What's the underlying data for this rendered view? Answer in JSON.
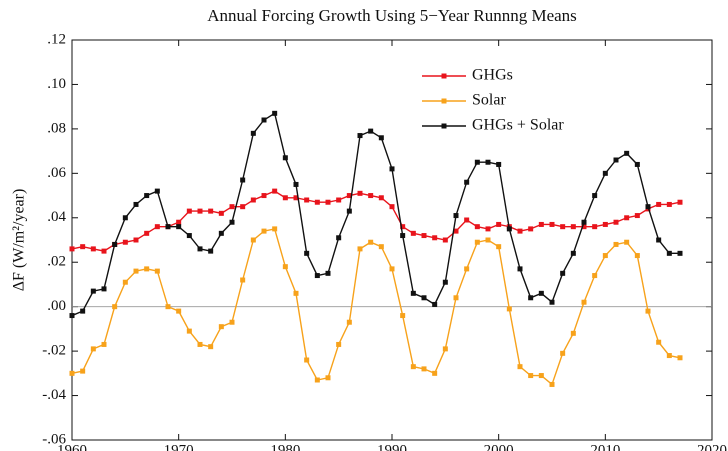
{
  "chart_data": {
    "type": "line",
    "title": "Annual Forcing Growth Using 5−Year Runnng Means",
    "y_label": "ΔF (W/m²/year)",
    "x": [
      1960,
      1961,
      1962,
      1963,
      1964,
      1965,
      1966,
      1967,
      1968,
      1969,
      1970,
      1971,
      1972,
      1973,
      1974,
      1975,
      1976,
      1977,
      1978,
      1979,
      1980,
      1981,
      1982,
      1983,
      1984,
      1985,
      1986,
      1987,
      1988,
      1989,
      1990,
      1991,
      1992,
      1993,
      1994,
      1995,
      1996,
      1997,
      1998,
      1999,
      2000,
      2001,
      2002,
      2003,
      2004,
      2005,
      2006,
      2007,
      2008,
      2009,
      2010,
      2011,
      2012,
      2013,
      2014,
      2015,
      2016,
      2017
    ],
    "series": [
      {
        "name": "GHGs",
        "color": "#e8141c",
        "values": [
          0.026,
          0.027,
          0.026,
          0.025,
          0.028,
          0.029,
          0.03,
          0.033,
          0.036,
          0.036,
          0.038,
          0.043,
          0.043,
          0.043,
          0.042,
          0.045,
          0.045,
          0.048,
          0.05,
          0.052,
          0.049,
          0.049,
          0.048,
          0.047,
          0.047,
          0.048,
          0.05,
          0.051,
          0.05,
          0.049,
          0.045,
          0.036,
          0.033,
          0.032,
          0.031,
          0.03,
          0.034,
          0.039,
          0.036,
          0.035,
          0.037,
          0.036,
          0.034,
          0.035,
          0.037,
          0.037,
          0.036,
          0.036,
          0.036,
          0.036,
          0.037,
          0.038,
          0.04,
          0.041,
          0.044,
          0.046,
          0.046,
          0.047
        ]
      },
      {
        "name": "Solar",
        "color": "#f7a21b",
        "values": [
          -0.03,
          -0.029,
          -0.019,
          -0.017,
          0.0,
          0.011,
          0.016,
          0.017,
          0.016,
          0.0,
          -0.002,
          -0.011,
          -0.017,
          -0.018,
          -0.009,
          -0.007,
          0.012,
          0.03,
          0.034,
          0.035,
          0.018,
          0.006,
          -0.024,
          -0.033,
          -0.032,
          -0.017,
          -0.007,
          0.026,
          0.029,
          0.027,
          0.017,
          -0.004,
          -0.027,
          -0.028,
          -0.03,
          -0.019,
          0.004,
          0.017,
          0.029,
          0.03,
          0.027,
          -0.001,
          -0.027,
          -0.031,
          -0.031,
          -0.035,
          -0.021,
          -0.012,
          0.002,
          0.014,
          0.023,
          0.028,
          0.029,
          0.023,
          -0.002,
          -0.016,
          -0.022,
          -0.023
        ]
      },
      {
        "name": "GHGs + Solar",
        "color": "#111111",
        "values": [
          -0.004,
          -0.002,
          0.007,
          0.008,
          0.028,
          0.04,
          0.046,
          0.05,
          0.052,
          0.036,
          0.036,
          0.032,
          0.026,
          0.025,
          0.033,
          0.038,
          0.057,
          0.078,
          0.084,
          0.087,
          0.067,
          0.055,
          0.024,
          0.014,
          0.015,
          0.031,
          0.043,
          0.077,
          0.079,
          0.076,
          0.062,
          0.032,
          0.006,
          0.004,
          0.001,
          0.011,
          0.041,
          0.056,
          0.065,
          0.065,
          0.064,
          0.035,
          0.017,
          0.004,
          0.006,
          0.002,
          0.015,
          0.024,
          0.038,
          0.05,
          0.06,
          0.066,
          0.069,
          0.064,
          0.045,
          0.03,
          0.024,
          0.024
        ]
      }
    ],
    "xlim": [
      1960,
      2020
    ],
    "xticks": [
      1960,
      1970,
      1980,
      1990,
      2000,
      2010,
      2020
    ],
    "ylim": [
      -0.06,
      0.12
    ],
    "yticks": [
      {
        "value": -0.06,
        "label": "-.06"
      },
      {
        "value": -0.04,
        "label": "-.04"
      },
      {
        "value": -0.02,
        "label": "-.02"
      },
      {
        "value": 0,
        "label": ".00"
      },
      {
        "value": 0.02,
        "label": ".02"
      },
      {
        "value": 0.04,
        "label": ".04"
      },
      {
        "value": 0.06,
        "label": ".06"
      },
      {
        "value": 0.08,
        "label": ".08"
      },
      {
        "value": 0.1,
        "label": ".10"
      },
      {
        "value": 0.12,
        "label": ".12"
      }
    ],
    "zero_line": true,
    "legend": "upper-right"
  }
}
